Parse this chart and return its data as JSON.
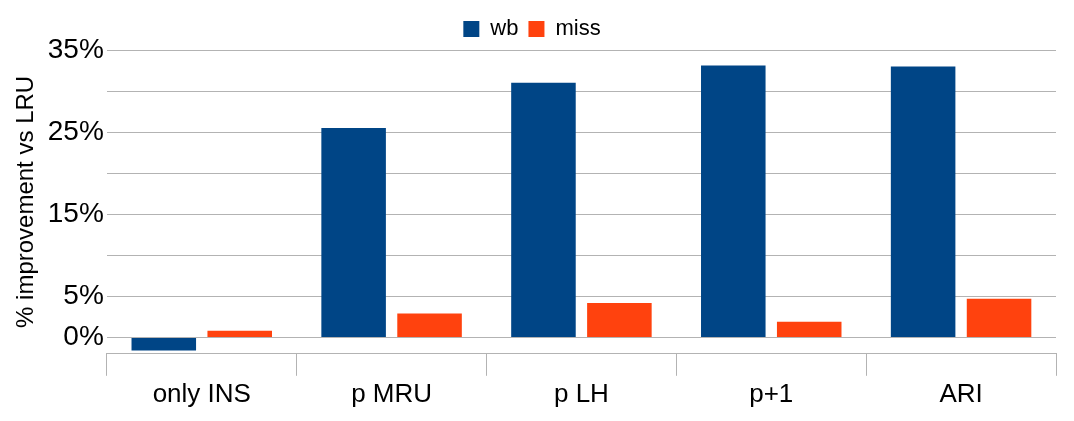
{
  "chart_data": {
    "type": "bar",
    "ylabel": "% improvement vs LRU",
    "categories": [
      "only INS",
      "p MRU",
      "p LH",
      "p+1",
      "ARI"
    ],
    "series": [
      {
        "name": "wb",
        "color": "#004586",
        "values": [
          -1.6,
          25.5,
          31.0,
          33.1,
          33.0
        ]
      },
      {
        "name": "miss",
        "color": "#ff420e",
        "values": [
          0.8,
          2.9,
          4.2,
          1.9,
          4.7
        ]
      }
    ],
    "ylim": [
      -2,
      35
    ],
    "yticks": [
      {
        "value": 0,
        "label": "0%"
      },
      {
        "value": 5,
        "label": "5%"
      },
      {
        "value": 10,
        "label": null
      },
      {
        "value": 15,
        "label": "15%"
      },
      {
        "value": 20,
        "label": null
      },
      {
        "value": 25,
        "label": "25%"
      },
      {
        "value": 30,
        "label": null
      },
      {
        "value": 35,
        "label": "35%"
      }
    ],
    "grid": "y",
    "legend": "top"
  }
}
